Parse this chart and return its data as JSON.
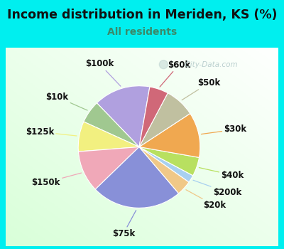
{
  "title": "Income distribution in Meriden, KS (%)",
  "subtitle": "All residents",
  "title_fontsize": 12.5,
  "subtitle_fontsize": 10,
  "title_color": "#111111",
  "subtitle_color": "#3a8a6a",
  "top_bg": "#00EFEF",
  "chart_bg": "#d8f0e8",
  "labels": [
    "$100k",
    "$10k",
    "$125k",
    "$150k",
    "$75k",
    "$20k",
    "$200k",
    "$40k",
    "$30k",
    "$50k",
    "$60k"
  ],
  "values": [
    15,
    6,
    8,
    11,
    24,
    4,
    2,
    5,
    12,
    8,
    5
  ],
  "colors": [
    "#b0a0df",
    "#a0c890",
    "#f2f080",
    "#f0a8b8",
    "#8890d8",
    "#f0c888",
    "#a8d0f0",
    "#b8e060",
    "#f0a850",
    "#c0c0a0",
    "#d06878"
  ],
  "startangle": 80,
  "label_fontsize": 8.5,
  "label_color": "#111111",
  "watermark": "  City-Data.com",
  "watermark_color": "#b0c8c8"
}
